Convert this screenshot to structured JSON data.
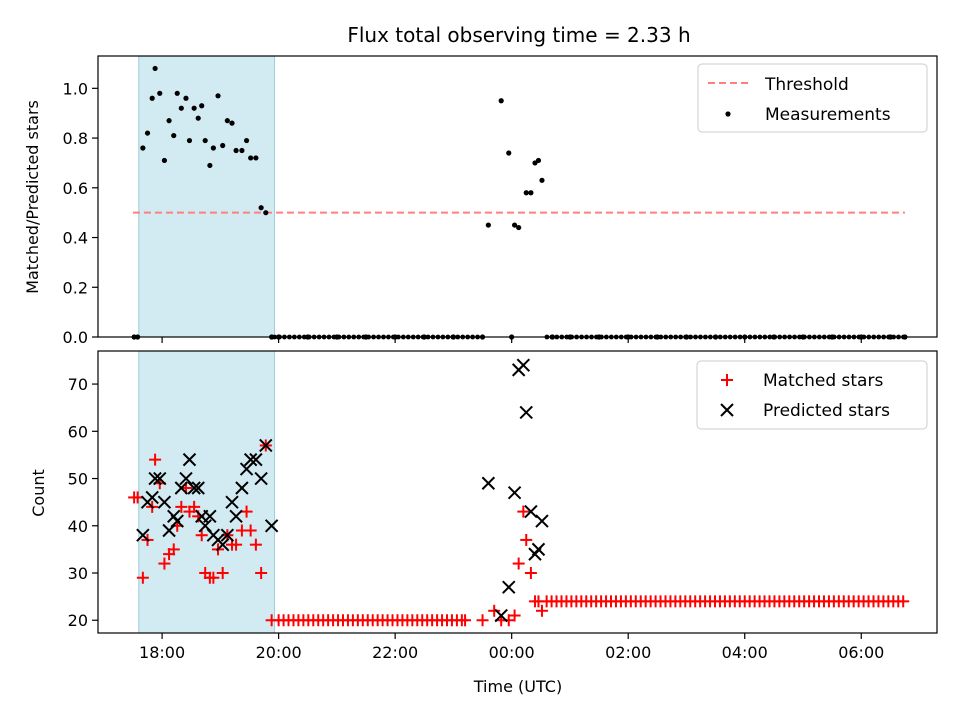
{
  "chart_data": [
    {
      "type": "scatter",
      "title": "Flux total observing time = 2.33 h",
      "ylabel": "Matched/Predicted stars",
      "xlabel": "",
      "ylim": [
        0,
        1.13
      ],
      "yticks": [
        "0.0",
        "0.2",
        "0.4",
        "0.6",
        "0.8",
        "1.0"
      ],
      "ytick_values": [
        0,
        0.2,
        0.4,
        0.6,
        0.8,
        1.0
      ],
      "x_range_hours": [
        16.9,
        31.3
      ],
      "xtick_hours": [
        18,
        20,
        22,
        24,
        26,
        28,
        30
      ],
      "xtick_labels": [
        "",
        "",
        "",
        "",
        "",
        "",
        ""
      ],
      "shaded_region_hours": [
        17.6,
        19.93
      ],
      "shaded_color": "#add8e6",
      "legend_position": "top-right",
      "threshold": {
        "name": "Threshold",
        "value": 0.5,
        "x_hours": [
          17.5,
          30.75
        ],
        "color": "#ff7f7f"
      },
      "series": [
        {
          "name": "Measurements",
          "color": "#000000",
          "x_hours": [
            17.52,
            17.58,
            17.67,
            17.75,
            17.83,
            17.88,
            17.96,
            18.04,
            18.12,
            18.2,
            18.26,
            18.33,
            18.41,
            18.47,
            18.55,
            18.62,
            18.68,
            18.74,
            18.82,
            18.88,
            18.96,
            19.04,
            19.12,
            19.2,
            19.27,
            19.37,
            19.45,
            19.52,
            19.61,
            19.7,
            19.78,
            19.88,
            20.0,
            20.5,
            21.0,
            21.5,
            22.0,
            22.5,
            23.0,
            23.5,
            23.6,
            23.82,
            24.0,
            23.95,
            24.05,
            24.12,
            24.25,
            24.33,
            24.4,
            24.46,
            24.52,
            24.7,
            25.0,
            25.5,
            26.0,
            26.5,
            27.0,
            27.5,
            28.0,
            28.5,
            29.0,
            29.5,
            30.0,
            30.5,
            30.75
          ],
          "y": [
            0.0,
            0.0,
            0.76,
            0.82,
            0.96,
            1.08,
            0.98,
            0.71,
            0.87,
            0.81,
            0.98,
            0.92,
            0.96,
            0.79,
            0.92,
            0.88,
            0.93,
            0.79,
            0.69,
            0.76,
            0.97,
            0.77,
            0.87,
            0.86,
            0.75,
            0.75,
            0.79,
            0.72,
            0.72,
            0.52,
            0.5,
            0.0,
            0.0,
            0.0,
            0.0,
            0.0,
            0.0,
            0.0,
            0.0,
            0.0,
            0.45,
            0.95,
            0.0,
            0.74,
            0.45,
            0.44,
            0.58,
            0.58,
            0.7,
            0.71,
            0.63,
            0.0,
            0.0,
            0.0,
            0.0,
            0.0,
            0.0,
            0.0,
            0.0,
            0.0,
            0.0,
            0.0,
            0.0,
            0.0,
            0.0
          ]
        }
      ]
    },
    {
      "type": "scatter",
      "title": "",
      "ylabel": "Count",
      "xlabel": "Time (UTC)",
      "ylim": [
        17.3,
        77
      ],
      "yticks": [
        "20",
        "30",
        "40",
        "50",
        "60",
        "70"
      ],
      "ytick_values": [
        20,
        30,
        40,
        50,
        60,
        70
      ],
      "x_range_hours": [
        16.9,
        31.3
      ],
      "xtick_hours": [
        18,
        20,
        22,
        24,
        26,
        28,
        30
      ],
      "xtick_labels": [
        "18:00",
        "20:00",
        "22:00",
        "00:00",
        "02:00",
        "04:00",
        "06:00"
      ],
      "shaded_region_hours": [
        17.6,
        19.93
      ],
      "shaded_color": "#add8e6",
      "legend_position": "top-right",
      "series": [
        {
          "name": "Matched stars",
          "marker": "plus",
          "color": "#ff0000",
          "x_hours": [
            17.52,
            17.58,
            17.67,
            17.75,
            17.83,
            17.88,
            17.96,
            18.04,
            18.12,
            18.2,
            18.26,
            18.33,
            18.41,
            18.47,
            18.55,
            18.62,
            18.68,
            18.74,
            18.82,
            18.88,
            18.96,
            19.04,
            19.12,
            19.2,
            19.27,
            19.37,
            19.45,
            19.52,
            19.61,
            19.7,
            19.78,
            19.88,
            23.2,
            23.5,
            23.7,
            23.82,
            23.95,
            24.05,
            24.12,
            24.2,
            24.25,
            24.33,
            24.4,
            24.46,
            24.52
          ],
          "y": [
            46,
            46,
            29,
            37,
            44,
            54,
            49,
            32,
            34,
            35,
            40,
            44,
            48,
            43,
            44,
            42,
            38,
            30,
            29,
            29,
            35,
            30,
            38,
            36,
            36,
            39,
            43,
            39,
            36,
            30,
            57,
            20,
            20,
            20,
            22,
            20,
            20,
            21,
            32,
            43,
            37,
            30,
            24,
            24,
            22
          ]
        },
        {
          "name": "Predicted stars",
          "marker": "x",
          "color": "#000000",
          "x_hours": [
            17.67,
            17.75,
            17.83,
            17.88,
            17.96,
            18.04,
            18.12,
            18.2,
            18.26,
            18.33,
            18.41,
            18.47,
            18.55,
            18.62,
            18.68,
            18.74,
            18.82,
            18.88,
            18.96,
            19.04,
            19.12,
            19.2,
            19.27,
            19.37,
            19.45,
            19.52,
            19.61,
            19.7,
            19.78,
            19.88,
            23.6,
            23.82,
            23.95,
            24.05,
            24.12,
            24.2,
            24.25,
            24.33,
            24.4,
            24.46,
            24.52
          ],
          "y": [
            38,
            45,
            46,
            50,
            50,
            45,
            39,
            42,
            41,
            48,
            50,
            54,
            48,
            48,
            42,
            40,
            42,
            38,
            37,
            36,
            38,
            45,
            42,
            48,
            52,
            54,
            54,
            50,
            57,
            40,
            49,
            21,
            27,
            47,
            73,
            74,
            64,
            43,
            34,
            35,
            41
          ]
        }
      ]
    }
  ],
  "legend": {
    "threshold_label": "Threshold",
    "measurements_label": "Measurements",
    "matched_label": "Matched stars",
    "predicted_label": "Predicted stars"
  }
}
